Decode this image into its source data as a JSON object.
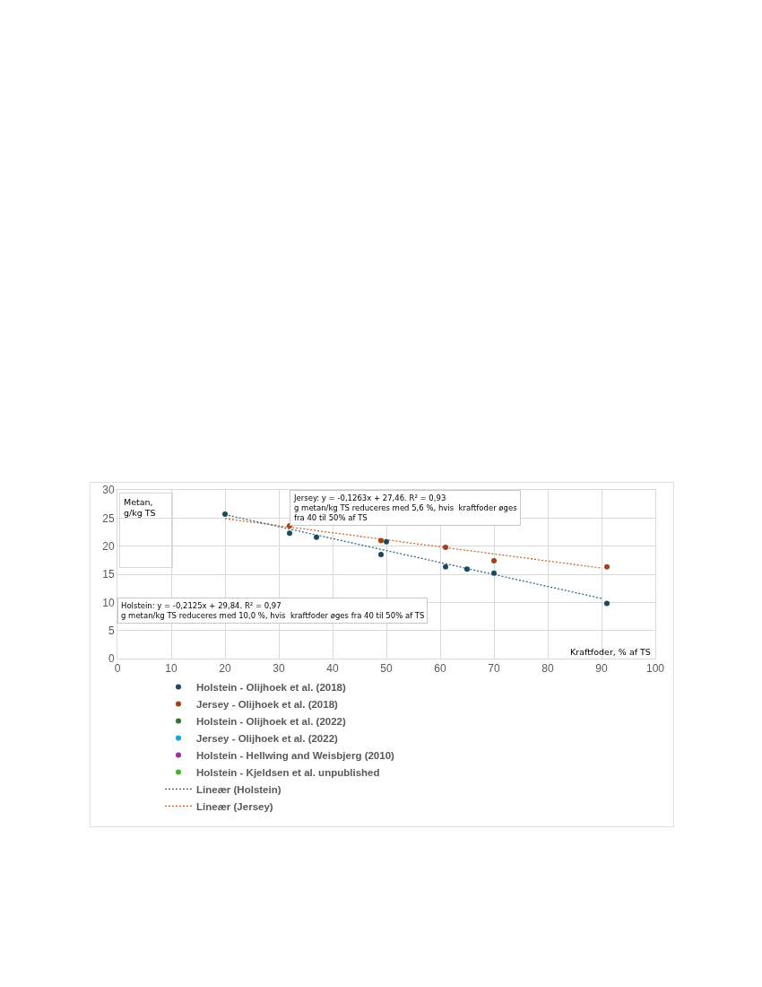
{
  "chart_data": {
    "type": "scatter",
    "xlabel": "Kraftfoder, % af TS",
    "ylabel": "Metan, g/kg TS",
    "xlim": [
      0,
      100
    ],
    "xticks": [
      0,
      10,
      20,
      30,
      40,
      50,
      60,
      70,
      80,
      90,
      100
    ],
    "ylim": [
      0,
      30
    ],
    "yticks": [
      0,
      5,
      10,
      15,
      20,
      25,
      30
    ],
    "grid": true,
    "legend": "bottom",
    "marker": "circle",
    "series": [
      {
        "name": "Holstein - Olijhoek et al. (2018)",
        "color": "#1b4a60",
        "x": [
          20,
          32,
          37,
          49,
          50,
          61,
          65,
          70,
          91
        ],
        "values": [
          25.7,
          22.3,
          21.6,
          18.5,
          20.8,
          16.3,
          15.9,
          15.2,
          9.8
        ]
      },
      {
        "name": "Jersey - Olijhoek et al. (2018)",
        "color": "#9e4418",
        "x": [
          32,
          49,
          61,
          70,
          91
        ],
        "values": [
          23.6,
          21.0,
          19.8,
          17.4,
          16.3
        ]
      },
      {
        "name": "Holstein - Olijhoek et al. (2022)",
        "color": "#2a7a2a"
      },
      {
        "name": "Jersey - Olijhoek et al. (2022)",
        "color": "#1aa0dc"
      },
      {
        "name": "Holstein - Hellwing and Weisbjerg (2010)",
        "color": "#a02c9c"
      },
      {
        "name": "Holstein - Kjeldsen et al. unpublished",
        "color": "#4caf32"
      },
      {
        "name": "Lineær (Holstein)",
        "type": "line",
        "line_style": "dotted",
        "marker": "none",
        "color": "#2f6b82",
        "x": [
          20,
          90
        ],
        "values": [
          25.6,
          10.7
        ]
      },
      {
        "name": "Lineær (Jersey)",
        "type": "line",
        "line_style": "dotted",
        "marker": "none",
        "color": "#c8692e",
        "x": [
          20,
          90
        ],
        "values": [
          24.9,
          16.1
        ]
      }
    ],
    "annotations": [
      "Jersey: y = -0,1263x + 27,46. R² = 0,93\ng metan/kg TS reduceres med 5,6 %, hvis  kraftfoder øges\nfra 40 til 50% af TS",
      "Holstein: y = -0,2125x + 29,84. R² = 0,97\ng metan/kg TS reduceres med 10,0 %, hvis  kraftfoder øges fra 40 til 50% af TS"
    ]
  }
}
